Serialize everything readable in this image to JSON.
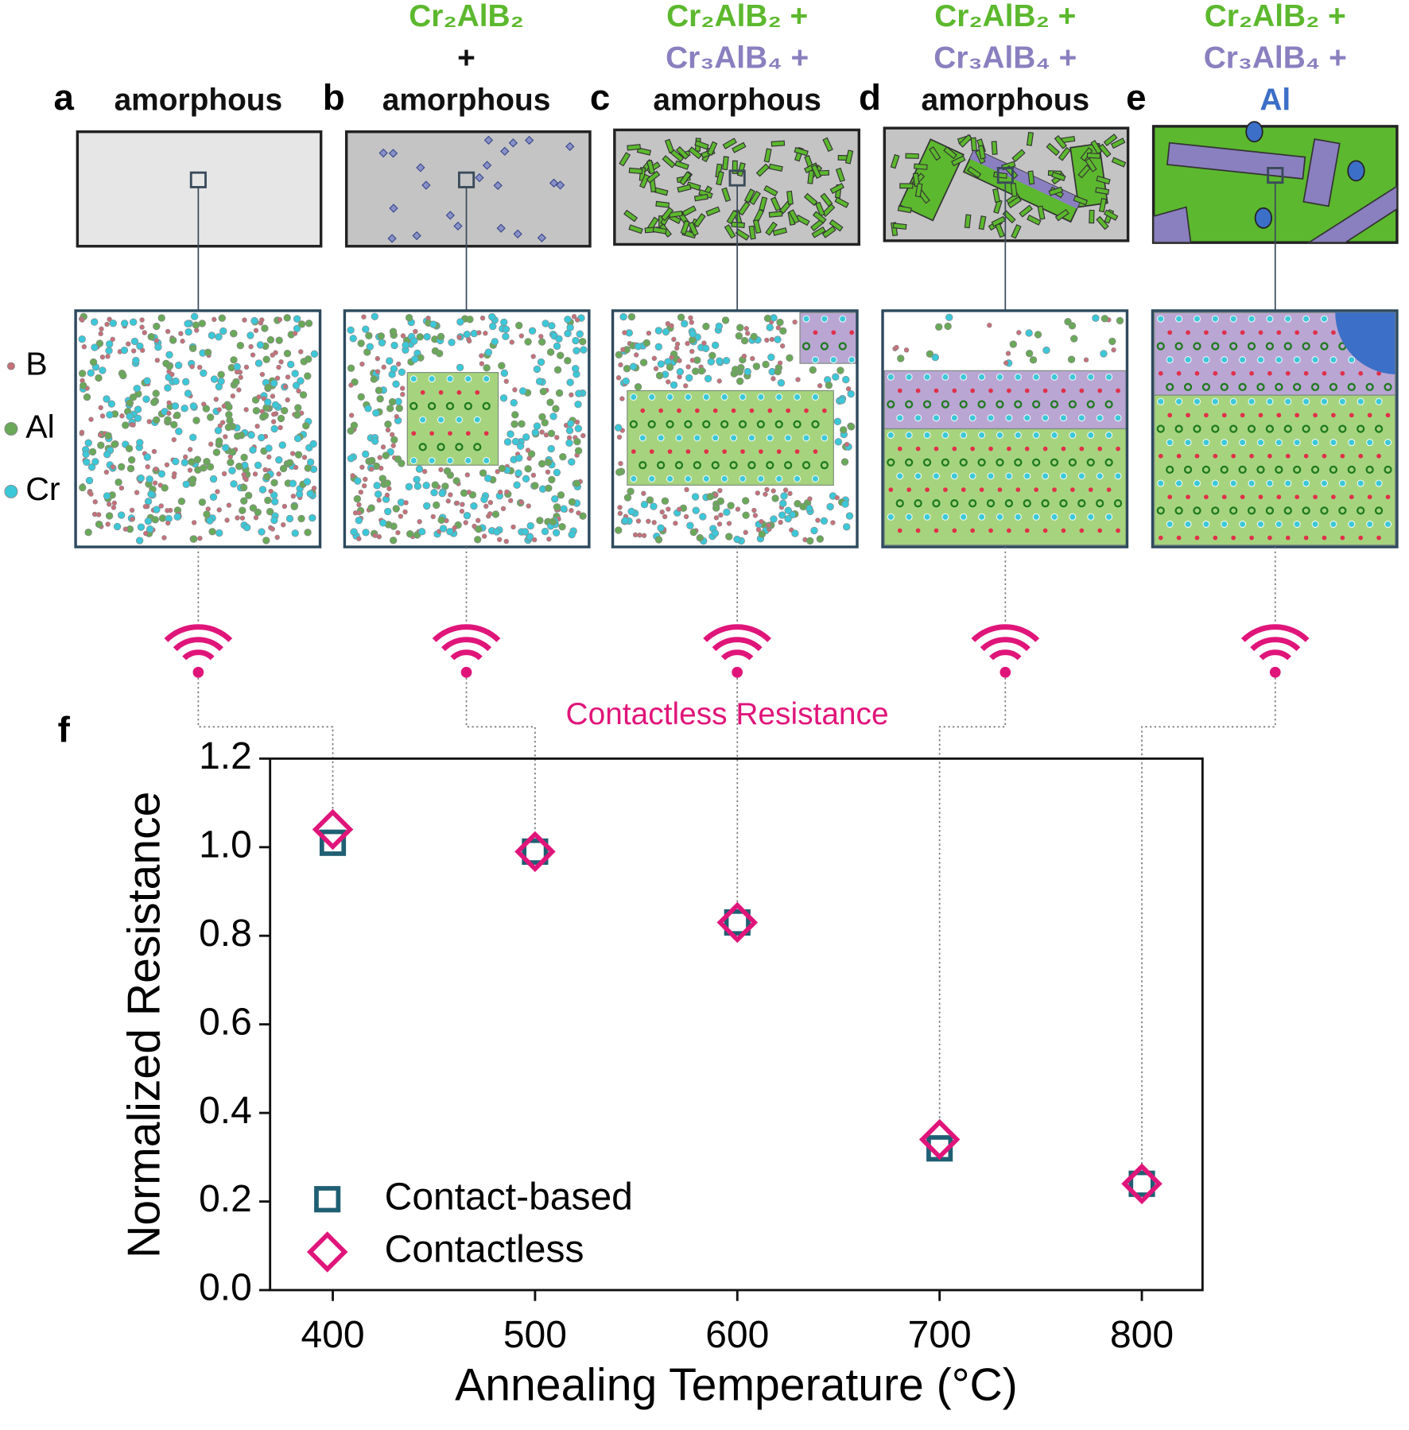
{
  "panels": [
    {
      "letter": "a",
      "phases": [
        {
          "text": "amorphous",
          "color": "#111111"
        }
      ]
    },
    {
      "letter": "b",
      "phases": [
        {
          "text": "Cr₂AlB₂",
          "color": "#5cb82e"
        },
        {
          "text": "+",
          "color": "#111111"
        },
        {
          "text": "amorphous",
          "color": "#111111"
        }
      ]
    },
    {
      "letter": "c",
      "phases": [
        {
          "text": "Cr₂AlB₂ +",
          "color": "#5cb82e"
        },
        {
          "text": "Cr₃AlB₄ +",
          "color": "#8a7fbf"
        },
        {
          "text": "amorphous",
          "color": "#111111"
        }
      ]
    },
    {
      "letter": "d",
      "phases": [
        {
          "text": "Cr₂AlB₂ +",
          "color": "#5cb82e"
        },
        {
          "text": "Cr₃AlB₄ +",
          "color": "#8a7fbf"
        },
        {
          "text": "amorphous",
          "color": "#111111"
        }
      ]
    },
    {
      "letter": "e",
      "phases": [
        {
          "text": "Cr₂AlB₂ +",
          "color": "#5cb82e"
        },
        {
          "text": "Cr₃AlB₄ +",
          "color": "#8a7fbf"
        },
        {
          "text": "Al",
          "color": "#3c6fc7"
        }
      ]
    }
  ],
  "atoms": [
    {
      "label": "B",
      "color": "#c8707a"
    },
    {
      "label": "Al",
      "color": "#6aa85a"
    },
    {
      "label": "Cr",
      "color": "#3cc8d8"
    }
  ],
  "annotation": "Contactless Resistance",
  "chart_data": {
    "type": "scatter",
    "panel_letter": "f",
    "xlabel": "Annealing Temperature (°C)",
    "ylabel": "Normalized Resistance",
    "x": [
      400,
      500,
      600,
      700,
      800
    ],
    "series": [
      {
        "name": "Contact-based",
        "color": "#1f5f73",
        "marker": "square",
        "values": [
          1.01,
          0.99,
          0.83,
          0.32,
          0.24
        ]
      },
      {
        "name": "Contactless",
        "color": "#e0157a",
        "marker": "diamond",
        "values": [
          1.04,
          0.99,
          0.83,
          0.34,
          0.24
        ]
      }
    ],
    "xlim": [
      369,
      830
    ],
    "ylim": [
      0,
      1.2
    ],
    "xticks": [
      400,
      500,
      600,
      700,
      800
    ],
    "yticks": [
      {
        "value": 0,
        "label": "0.0"
      },
      0.2,
      0.4,
      0.6,
      0.8,
      {
        "value": 1,
        "label": "1.0"
      },
      1.2
    ],
    "grid": false,
    "legend": "lower left"
  }
}
